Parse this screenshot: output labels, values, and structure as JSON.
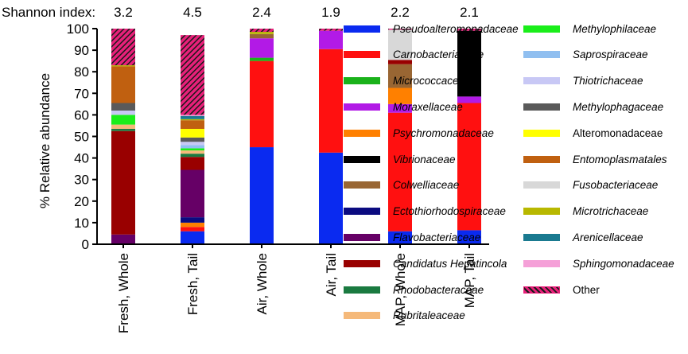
{
  "chart_data": {
    "type": "stacked-bar",
    "title": "",
    "ylabel": "% Relative abundance",
    "ylim": [
      0,
      100
    ],
    "yticks": [
      0,
      10,
      20,
      30,
      40,
      50,
      60,
      70,
      80,
      90,
      100
    ],
    "categories": [
      "Fresh, Whole",
      "Fresh, Tail",
      "Air, Whole",
      "Air, Tail",
      "MAP, Whole",
      "MAP, Tail"
    ],
    "shannon_label": "Shannon index:",
    "shannon_values": [
      "3.2",
      "4.5",
      "2.4",
      "1.9",
      "2.2",
      "2.1"
    ],
    "series": [
      {
        "name": "Pseudoalteromonadaceae",
        "color": "#0a2af0",
        "italic": true,
        "values": [
          0,
          6,
          45,
          42.5,
          6,
          6.5
        ]
      },
      {
        "name": "Carnobacteriaceae",
        "color": "#ff1010",
        "italic": true,
        "values": [
          0,
          2,
          40,
          48,
          55,
          59
        ]
      },
      {
        "name": "Micrococcaceae",
        "color": "#1ab21a",
        "italic": true,
        "values": [
          0,
          0,
          1.5,
          0,
          0,
          0
        ]
      },
      {
        "name": "Moraxellaceae",
        "color": "#b21ae6",
        "italic": true,
        "values": [
          0,
          0,
          9,
          8.5,
          4,
          3
        ]
      },
      {
        "name": "Psychromonadaceae",
        "color": "#ff8000",
        "italic": true,
        "values": [
          0,
          2,
          0,
          0,
          7.5,
          0
        ]
      },
      {
        "name": "Vibrionaceae",
        "color": "#000000",
        "italic": true,
        "values": [
          0,
          0,
          0,
          0,
          0,
          30.5
        ]
      },
      {
        "name": "Colwelliaceae",
        "color": "#996633",
        "italic": true,
        "values": [
          0,
          0,
          2,
          0,
          11,
          0
        ]
      },
      {
        "name": "Ectothiorhodospiraceae",
        "color": "#0b0b80",
        "italic": true,
        "values": [
          0,
          2.5,
          0,
          0,
          0,
          0
        ]
      },
      {
        "name": "Flavobacteriaceae",
        "color": "#660066",
        "italic": true,
        "values": [
          4.5,
          22,
          0,
          0,
          0,
          0
        ]
      },
      {
        "name": "Candidatus Hepatincola",
        "color": "#990000",
        "italic": true,
        "values": [
          48,
          6,
          0,
          0,
          2,
          0
        ]
      },
      {
        "name": "Rhodobacteraceae",
        "color": "#1a7a40",
        "italic": true,
        "values": [
          1,
          1.5,
          0,
          0,
          0,
          0
        ]
      },
      {
        "name": "Rubritaleaceae",
        "color": "#f5b97a",
        "italic": true,
        "values": [
          2,
          1.5,
          0,
          0,
          0,
          0
        ]
      },
      {
        "name": "Methylophilaceae",
        "color": "#1aee1a",
        "italic": true,
        "values": [
          4.5,
          1,
          0,
          0,
          0,
          0
        ]
      },
      {
        "name": "Saprospiraceae",
        "color": "#90bff0",
        "italic": true,
        "values": [
          0,
          1.5,
          0,
          0,
          0,
          0
        ]
      },
      {
        "name": "Thiotrichaceae",
        "color": "#c8c8f5",
        "italic": true,
        "values": [
          2,
          1.5,
          0,
          0,
          0,
          0
        ]
      },
      {
        "name": "Methylophagaceae",
        "color": "#5a5a5a",
        "italic": true,
        "values": [
          3.5,
          2,
          0,
          0,
          0,
          0
        ]
      },
      {
        "name": "Alteromonadaceae",
        "color": "#ffff00",
        "italic": false,
        "values": [
          0,
          4,
          0,
          0,
          0,
          0
        ]
      },
      {
        "name": "Entomoplasmatales",
        "color": "#c06010",
        "italic": true,
        "values": [
          17,
          4,
          0,
          0,
          0,
          0
        ]
      },
      {
        "name": "Fusobacteriaceae",
        "color": "#d8d8d8",
        "italic": true,
        "values": [
          0,
          0,
          0,
          0,
          14,
          0
        ]
      },
      {
        "name": "Microtrichaceae",
        "color": "#b8b800",
        "italic": true,
        "values": [
          0.5,
          0.5,
          1,
          0,
          0,
          0
        ]
      },
      {
        "name": "Arenicellaceae",
        "color": "#1a7a90",
        "italic": true,
        "values": [
          0,
          1.5,
          0,
          0,
          0,
          0
        ]
      },
      {
        "name": "Sphingomonadaceae",
        "color": "#f5a0d8",
        "italic": true,
        "values": [
          0,
          0.5,
          0,
          0,
          0,
          0
        ]
      },
      {
        "name": "Other",
        "color": "#e8207a",
        "italic": false,
        "hatch": true,
        "values": [
          17,
          37,
          1.5,
          1,
          0.5,
          1
        ]
      }
    ]
  }
}
